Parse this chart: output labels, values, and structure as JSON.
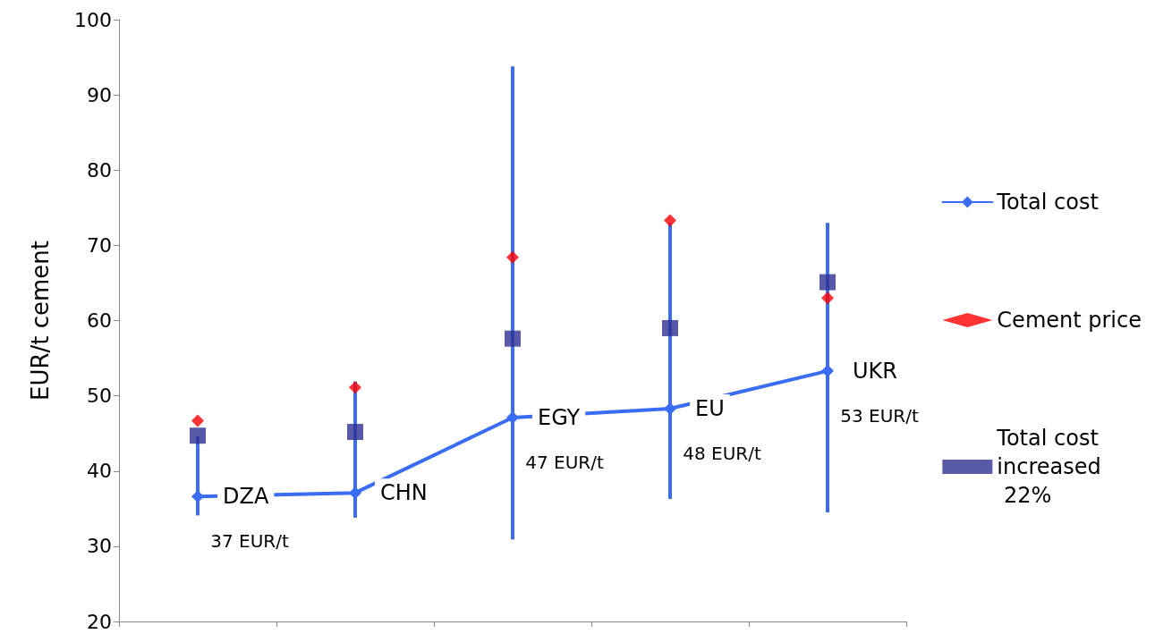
{
  "chart_data": {
    "type": "line",
    "ylabel": "EUR/t cement",
    "categories": [
      null,
      null,
      null,
      null,
      null
    ],
    "ylim": [
      20,
      100
    ],
    "yticks": [
      20,
      30,
      40,
      50,
      60,
      70,
      80,
      90,
      100
    ],
    "grid": false,
    "legend": "right",
    "series": [
      {
        "name": "Total cost",
        "color": "#3a6cf4",
        "marker": "diamond",
        "values": [
          36.6,
          37.1,
          47.1,
          48.3,
          53.3
        ],
        "errors": [
          [
            34.1,
            44.6
          ],
          [
            33.8,
            51.9
          ],
          [
            30.9,
            93.8
          ],
          [
            36.3,
            73.0
          ],
          [
            34.5,
            73.0
          ]
        ],
        "value_labels": [
          "37 EUR/t",
          null,
          "47 EUR/t",
          "48 EUR/t",
          "53 EUR/t"
        ]
      },
      {
        "name": "Cement price",
        "type": "scatter",
        "color": "#ff0000",
        "marker": "diamond",
        "values": [
          46.7,
          51.1,
          68.4,
          73.3,
          63.0
        ]
      },
      {
        "name": "Total cost\nincreased\n 22%",
        "type": "scatter",
        "color": "#2e3192",
        "marker": "square",
        "values": [
          44.7,
          45.2,
          57.6,
          59.0,
          65.1
        ]
      }
    ],
    "annotations": [
      "DZA",
      "CHN",
      "EGY",
      "EU",
      "UKR"
    ]
  }
}
